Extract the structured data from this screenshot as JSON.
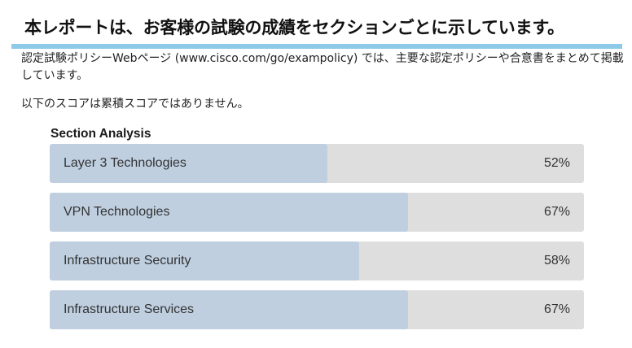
{
  "header": {
    "title": "本レポートは、お客様の試験の成績をセクションごとに示しています。",
    "rule_color": "#8ec9e8"
  },
  "intro": {
    "text": "認定試験ポリシーWebページ (www.cisco.com/go/exampolicy) では、主要な認定ポリシーや合意書をまとめて掲載しています。",
    "note": "以下のスコアは累積スコアではありません。"
  },
  "section_analysis": {
    "heading": "Section Analysis",
    "fill_color": "#bfcfe0",
    "track_color": "#dedede",
    "items": [
      {
        "label": "Layer 3 Technologies",
        "value_text": "52%",
        "percent": 52
      },
      {
        "label": "VPN Technologies",
        "value_text": "67%",
        "percent": 67
      },
      {
        "label": "Infrastructure Security",
        "value_text": "58%",
        "percent": 58
      },
      {
        "label": "Infrastructure Services",
        "value_text": "67%",
        "percent": 67
      }
    ]
  }
}
